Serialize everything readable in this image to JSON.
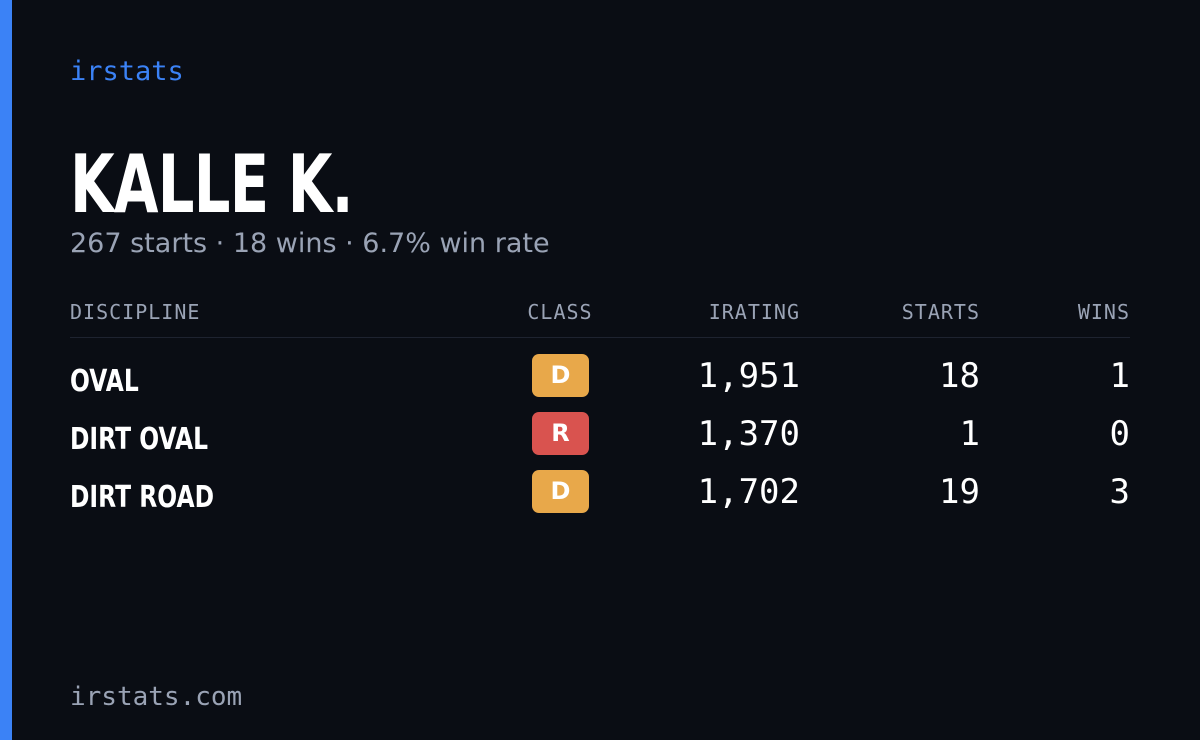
{
  "brand": "irstats",
  "profile": {
    "name": "KALLE K.",
    "summary": "267 starts · 18 wins · 6.7% win rate"
  },
  "table": {
    "headers": [
      "DISCIPLINE",
      "CLASS",
      "IRATING",
      "STARTS",
      "WINS"
    ],
    "rows": [
      [
        "OVAL",
        "D",
        "1,951",
        "18",
        "1"
      ],
      [
        "DIRT OVAL",
        "R",
        "1,370",
        "1",
        "0"
      ],
      [
        "DIRT ROAD",
        "D",
        "1,702",
        "19",
        "3"
      ]
    ]
  },
  "footer": "irstats.com"
}
